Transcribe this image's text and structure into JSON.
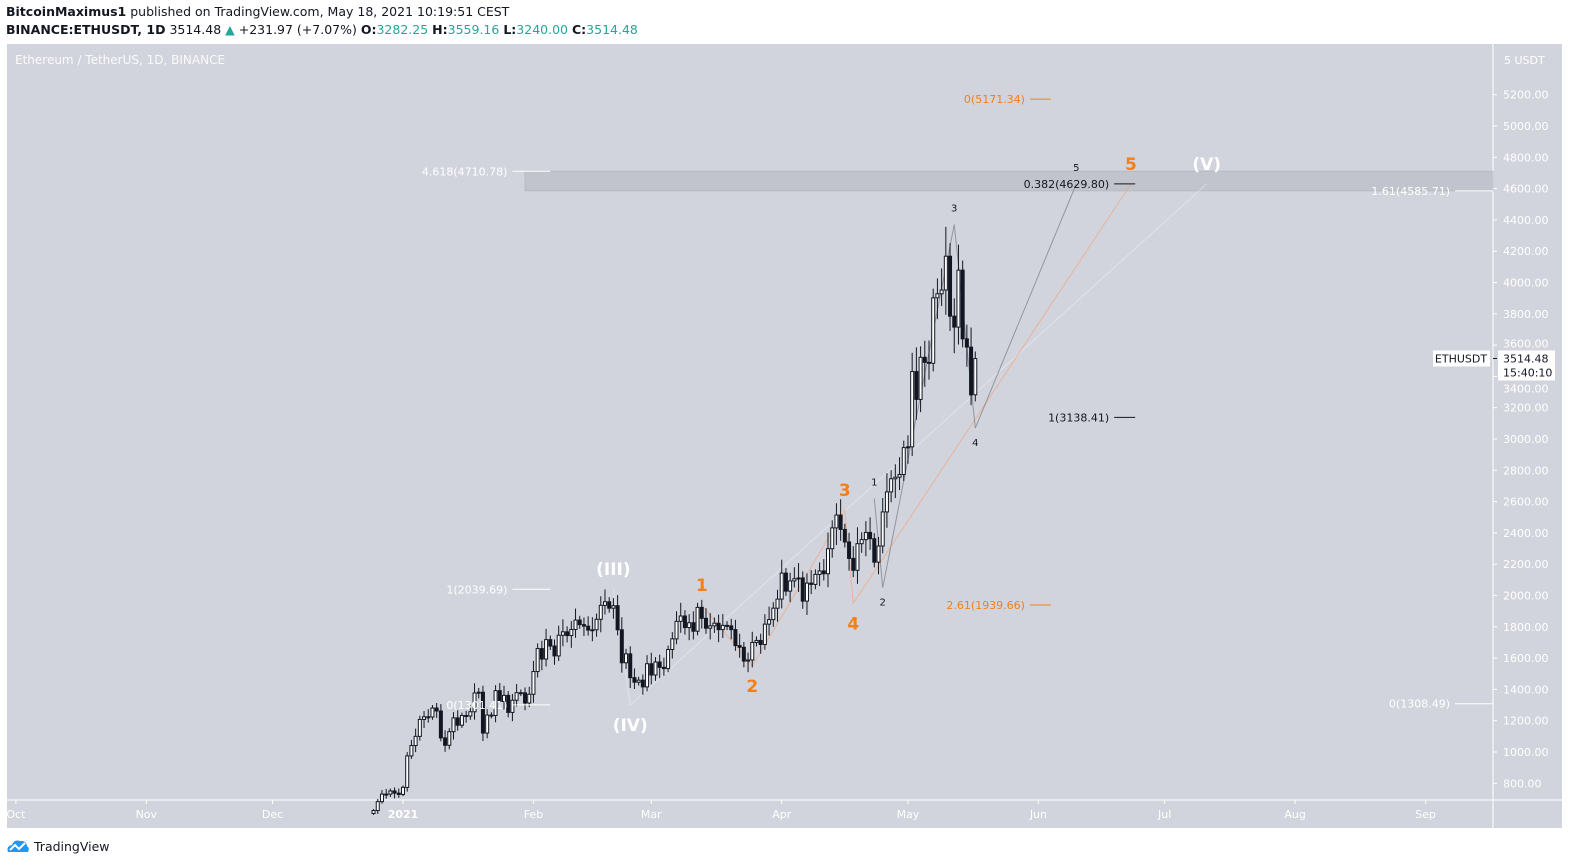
{
  "header": {
    "author": "BitcoinMaximus1",
    "published": "published on TradingView.com, May 18, 2021 10:19:51 CEST",
    "symbol": "BINANCE:ETHUSDT, 1D",
    "last": "3514.48",
    "change": "+231.97 (+7.07%)",
    "o_label": "O:",
    "o": "3282.25",
    "h_label": "H:",
    "h": "3559.16",
    "l_label": "L:",
    "l": "3240.00",
    "c_label": "C:",
    "c": "3514.48"
  },
  "footer": {
    "brand": "TradingView"
  },
  "colors": {
    "background": "#d1d4dc",
    "up": "#ffffff",
    "down": "#131722",
    "orange": "#f57f17",
    "label_white": "#ffffff",
    "change_green": "#26a69a"
  },
  "chart_data": {
    "type": "candlestick",
    "title": "Ethereum / TetherUS, 1D, BINANCE",
    "y_unit": "USDT",
    "y_axis_label": "5 USDT",
    "ylim": [
      700,
      5450
    ],
    "y_ticks": [
      "5200.00",
      "5000.00",
      "4800.00",
      "4600.00",
      "4400.00",
      "4200.00",
      "4000.00",
      "3800.00",
      "3600.00",
      "3400.00",
      "3200.00",
      "3000.00",
      "2800.00",
      "2600.00",
      "2400.00",
      "2200.00",
      "2000.00",
      "1800.00",
      "1600.00",
      "1400.00",
      "1200.00",
      "1000.00",
      "800.00"
    ],
    "x_ticks": [
      {
        "label": "Oct",
        "date": "2020-10-01"
      },
      {
        "label": "Nov",
        "date": "2020-11-01"
      },
      {
        "label": "Dec",
        "date": "2020-12-01"
      },
      {
        "label": "2021",
        "date": "2021-01-01"
      },
      {
        "label": "Feb",
        "date": "2021-02-01"
      },
      {
        "label": "Mar",
        "date": "2021-03-01"
      },
      {
        "label": "Apr",
        "date": "2021-04-01"
      },
      {
        "label": "May",
        "date": "2021-05-01"
      },
      {
        "label": "Jun",
        "date": "2021-06-01"
      },
      {
        "label": "Jul",
        "date": "2021-07-01"
      },
      {
        "label": "Aug",
        "date": "2021-08-01"
      },
      {
        "label": "Sep",
        "date": "2021-09-01"
      }
    ],
    "first_candle_date": "2020-12-25",
    "closes": [
      626,
      683,
      731,
      731,
      751,
      737,
      729,
      774,
      975,
      1041,
      1100,
      1208,
      1225,
      1224,
      1281,
      1262,
      1090,
      1043,
      1130,
      1218,
      1171,
      1233,
      1230,
      1257,
      1377,
      1382,
      1121,
      1236,
      1233,
      1392,
      1323,
      1362,
      1253,
      1331,
      1379,
      1378,
      1313,
      1369,
      1514,
      1661,
      1594,
      1718,
      1677,
      1614,
      1746,
      1768,
      1744,
      1783,
      1843,
      1814,
      1804,
      1779,
      1781,
      1848,
      1937,
      1960,
      1919,
      1935,
      1781,
      1570,
      1627,
      1475,
      1446,
      1459,
      1416,
      1564,
      1492,
      1575,
      1541,
      1533,
      1655,
      1723,
      1835,
      1869,
      1795,
      1826,
      1772,
      1924,
      1854,
      1791,
      1806,
      1823,
      1782,
      1809,
      1806,
      1782,
      1680,
      1669,
      1581,
      1588,
      1700,
      1713,
      1687,
      1817,
      1846,
      1919,
      1977,
      2143,
      2028,
      2093,
      2107,
      2112,
      1964,
      2079,
      2071,
      2135,
      2157,
      2139,
      2299,
      2432,
      2514,
      2422,
      2342,
      2237,
      2161,
      2331,
      2357,
      2403,
      2363,
      2213,
      2316,
      2534,
      2662,
      2746,
      2756,
      2773,
      2945,
      2950,
      3431,
      3253,
      3522,
      3490,
      3484,
      3902,
      3928,
      3952,
      4168,
      3785,
      3715,
      4079,
      3640,
      3587,
      3282,
      3514
    ],
    "last_price": {
      "symbol": "ETHUSDT",
      "price": "3514.48",
      "countdown": "15:40:10"
    },
    "fib_levels": [
      {
        "label": "0(5171.34)",
        "value": 5171.34,
        "color": "orange",
        "from": "2021-05-30",
        "to": "2021-06-04"
      },
      {
        "label": "4.618(4710.78)",
        "value": 4710.78,
        "color": "white",
        "from": "2021-01-27",
        "to": "2021-02-05"
      },
      {
        "label": "0.382(4629.80)",
        "value": 4629.8,
        "color": "black",
        "from": "2021-06-19",
        "to": "2021-06-24"
      },
      {
        "label": "1.61(4585.71)",
        "value": 4585.71,
        "color": "white",
        "from": "2021-09-08",
        "to": "2021-09-17"
      },
      {
        "label": "1(3138.41)",
        "value": 3138.41,
        "color": "black",
        "from": "2021-06-19",
        "to": "2021-06-24"
      },
      {
        "label": "2.61(1939.66)",
        "value": 1939.66,
        "color": "orange",
        "from": "2021-05-30",
        "to": "2021-06-04"
      },
      {
        "label": "1(2039.69)",
        "value": 2039.69,
        "color": "white",
        "from": "2021-01-27",
        "to": "2021-02-05"
      },
      {
        "label": "0(1301.41)",
        "value": 1301.41,
        "color": "white",
        "from": "2021-01-27",
        "to": "2021-02-05"
      },
      {
        "label": "0(1308.49)",
        "value": 1308.49,
        "color": "white",
        "from": "2021-09-08",
        "to": "2021-09-17"
      }
    ],
    "target_zone": {
      "from": "2021-01-30",
      "to": "2021-09-17",
      "low": 4585.71,
      "high": 4710.78
    },
    "wave_counts": [
      {
        "name": "major",
        "color": "white",
        "points": [
          {
            "label": "(III)",
            "date": "2021-02-20",
            "value": 2040,
            "label_pos": "above"
          },
          {
            "label": "(IV)",
            "date": "2021-02-24",
            "value": 1300,
            "label_pos": "below"
          },
          {
            "label": "(V)",
            "date": "2021-07-11",
            "value": 4630,
            "label_pos": "above"
          }
        ]
      },
      {
        "name": "intermediate",
        "color": "orange",
        "points": [
          {
            "label": "1",
            "date": "2021-03-13",
            "value": 1940,
            "label_pos": "above"
          },
          {
            "label": "2",
            "date": "2021-03-25",
            "value": 1550,
            "label_pos": "below"
          },
          {
            "label": "3",
            "date": "2021-04-16",
            "value": 2545,
            "label_pos": "above"
          },
          {
            "label": "4",
            "date": "2021-04-18",
            "value": 1950,
            "label_pos": "below"
          },
          {
            "label": "5",
            "date": "2021-06-23",
            "value": 4630,
            "label_pos": "above"
          }
        ]
      },
      {
        "name": "minor",
        "color": "black",
        "points": [
          {
            "label": "1",
            "date": "2021-04-23",
            "value": 2620,
            "label_pos": "above"
          },
          {
            "label": "2",
            "date": "2021-04-25",
            "value": 2050,
            "label_pos": "below"
          },
          {
            "label": "3",
            "date": "2021-05-12",
            "value": 4370,
            "label_pos": "above"
          },
          {
            "label": "4",
            "date": "2021-05-17",
            "value": 3070,
            "label_pos": "below"
          },
          {
            "label": "5",
            "date": "2021-06-10",
            "value": 4630,
            "label_pos": "above"
          }
        ]
      }
    ]
  }
}
